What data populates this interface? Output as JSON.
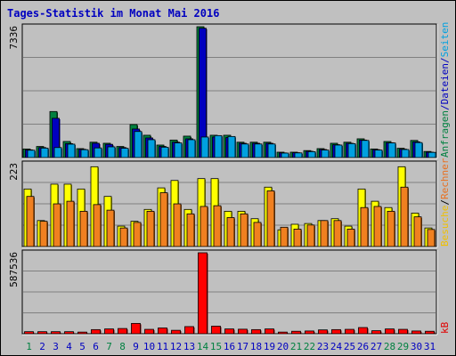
{
  "chart_data": {
    "type": "bar",
    "title": "Tages-Statistik im Monat Mai 2016",
    "categories": [
      "1",
      "2",
      "3",
      "4",
      "5",
      "6",
      "7",
      "8",
      "9",
      "10",
      "11",
      "12",
      "13",
      "14",
      "15",
      "16",
      "17",
      "18",
      "19",
      "20",
      "21",
      "22",
      "23",
      "24",
      "25",
      "26",
      "27",
      "28",
      "29",
      "30",
      "31"
    ],
    "weekend_days": [
      "1",
      "7",
      "8",
      "14",
      "15",
      "21",
      "22",
      "28",
      "29"
    ],
    "highlight_day": "14",
    "colors": {
      "title": "#0000c0",
      "background": "#ffffff",
      "frame_bg": "#c0c0c0",
      "grid": "#808080",
      "weekday_tick": "#0000c0",
      "weekend_tick": "#008040",
      "highlight_tick": "#008040"
    },
    "panels": [
      {
        "id": "top",
        "ymax_label": "7336",
        "ymax": 7336,
        "legend": [
          {
            "text": "Anfragen",
            "color": "#008040"
          },
          {
            "text": "/",
            "color": "#0000c0"
          },
          {
            "text": "Dateien",
            "color": "#0000c0"
          },
          {
            "text": "/",
            "color": "#0000c0"
          },
          {
            "text": "Seiten",
            "color": "#00a0e0"
          }
        ],
        "series": [
          {
            "name": "Anfragen",
            "color": "#008040",
            "values": [
              480,
              620,
              2580,
              900,
              500,
              860,
              800,
              620,
              1850,
              1250,
              700,
              980,
              1200,
              7336,
              1250,
              1250,
              860,
              860,
              860,
              300,
              300,
              390,
              500,
              800,
              860,
              1050,
              480,
              900,
              520,
              960,
              340
            ]
          },
          {
            "name": "Dateien",
            "color": "#0000c0",
            "values": [
              430,
              560,
              2200,
              780,
              460,
              800,
              740,
              560,
              1600,
              1100,
              620,
              860,
              1050,
              7250,
              1150,
              1120,
              800,
              800,
              800,
              260,
              270,
              350,
              450,
              720,
              800,
              980,
              440,
              830,
              470,
              880,
              300
            ]
          },
          {
            "name": "Seiten",
            "color": "#00a0e0",
            "values": [
              410,
              530,
              560,
              750,
              440,
              540,
              600,
              520,
              1460,
              1000,
              580,
              820,
              1000,
              1150,
              1230,
              1180,
              760,
              760,
              760,
              250,
              260,
              330,
              420,
              700,
              780,
              960,
              420,
              820,
              450,
              840,
              290
            ]
          }
        ]
      },
      {
        "id": "middle",
        "ymax_label": "223",
        "ymax": 223,
        "legend": [
          {
            "text": "Besuche",
            "color": "#f0c000"
          },
          {
            "text": "/",
            "color": "#000000"
          },
          {
            "text": "Rechner",
            "color": "#e87020"
          }
        ],
        "series": [
          {
            "name": "Besuche",
            "color": "#ffff00",
            "values": [
              155,
              70,
              168,
              168,
              155,
              215,
              135,
              55,
              68,
              100,
              158,
              178,
              100,
              183,
              183,
              95,
              95,
              75,
              160,
              45,
              60,
              62,
              70,
              75,
              55,
              155,
              122,
              105,
              215,
              90,
              50
            ]
          },
          {
            "name": "Rechner",
            "color": "#f08020",
            "values": [
              135,
              68,
              115,
              122,
              95,
              113,
              98,
              50,
              65,
              95,
              145,
              115,
              88,
              108,
              110,
              78,
              88,
              65,
              150,
              52,
              47,
              58,
              70,
              70,
              47,
              105,
              108,
              95,
              160,
              80,
              46
            ]
          }
        ]
      },
      {
        "id": "bottom",
        "ymax_label": "587536",
        "ymax": 587536,
        "legend": [
          {
            "text": "kB",
            "color": "#e00000"
          }
        ],
        "series": [
          {
            "name": "kB",
            "color": "#ff0000",
            "values": [
              15000,
              15000,
              15000,
              15000,
              12000,
              30000,
              35000,
              38000,
              75000,
              32000,
              42000,
              25000,
              52000,
              587536,
              55000,
              35000,
              33000,
              30000,
              35000,
              12000,
              18000,
              20000,
              28000,
              30000,
              32000,
              45000,
              22000,
              35000,
              32000,
              20000,
              18000
            ]
          }
        ]
      }
    ]
  }
}
